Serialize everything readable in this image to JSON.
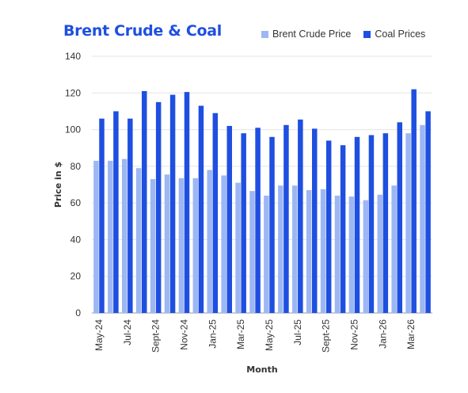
{
  "chart_data": {
    "type": "bar",
    "title": "Brent Crude & Coal",
    "xlabel": "Month",
    "ylabel": "Price in $",
    "ylim": [
      0,
      140
    ],
    "yticks": [
      0,
      20,
      40,
      60,
      80,
      100,
      120,
      140
    ],
    "grid": true,
    "legend_position": "top-right",
    "tick_labels": [
      "May-24",
      "Jul-24",
      "Sept-24",
      "Nov-24",
      "Jan-25",
      "Mar-25",
      "May-25",
      "Jul-25",
      "Sept-25",
      "Nov-25",
      "Jan-26",
      "Mar-26"
    ],
    "categories": [
      "May-24",
      "Jun-24",
      "Jul-24",
      "Aug-24",
      "Sept-24",
      "Oct-24",
      "Nov-24",
      "Dec-24",
      "Jan-25",
      "Feb-25",
      "Mar-25",
      "Apr-25",
      "May-25",
      "Jun-25",
      "Jul-25",
      "Aug-25",
      "Sept-25",
      "Oct-25",
      "Nov-25",
      "Dec-25",
      "Jan-26",
      "Feb-26",
      "Mar-26",
      "Apr-26"
    ],
    "series": [
      {
        "name": "Brent Crude Price",
        "color": "#9db7f5",
        "values": [
          83,
          83,
          84,
          79,
          73,
          75.5,
          73.5,
          73.5,
          78,
          75,
          71,
          66.5,
          64,
          69.5,
          69.5,
          67,
          67.5,
          64,
          63.5,
          61.5,
          64.5,
          69.5,
          98,
          102.5
        ]
      },
      {
        "name": "Coal Prices",
        "color": "#1f4fe0",
        "values": [
          106,
          110,
          106,
          121,
          115,
          119,
          120.5,
          113,
          109,
          102,
          98,
          101,
          96,
          102.5,
          105.5,
          100.5,
          94,
          91.5,
          96,
          97,
          98,
          104,
          122,
          110
        ]
      }
    ]
  }
}
